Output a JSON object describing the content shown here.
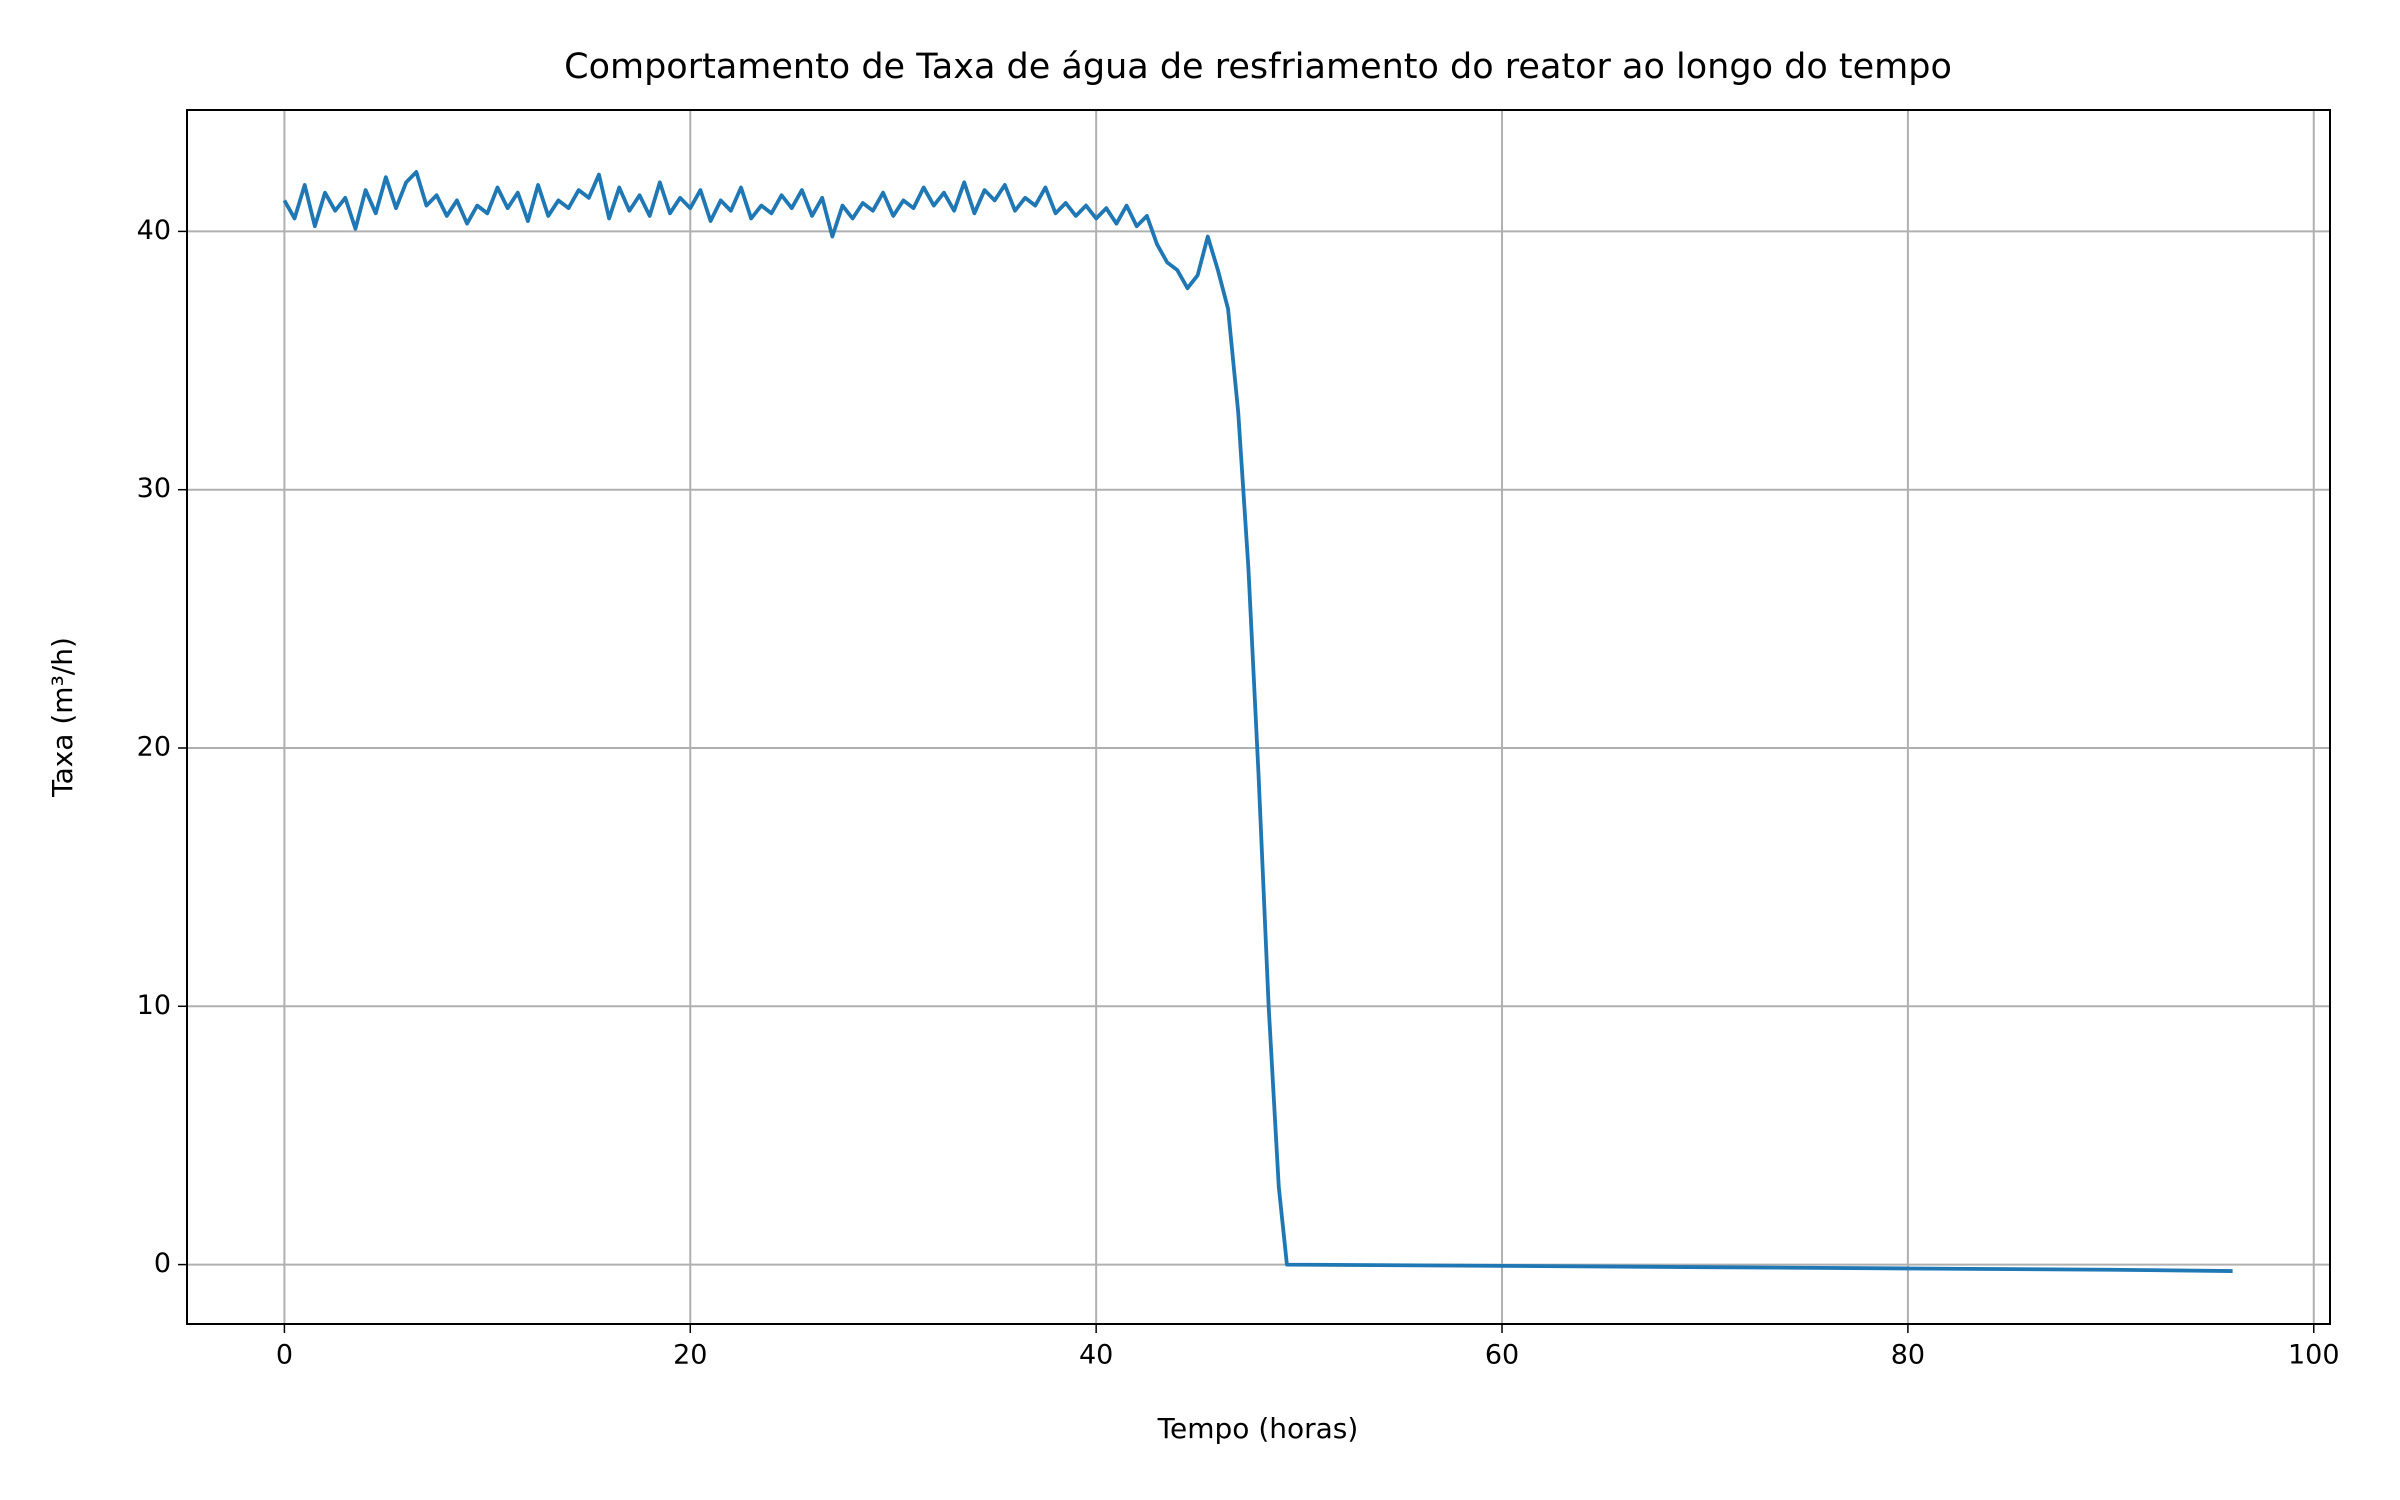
{
  "chart_data": {
    "type": "line",
    "title": "Comportamento de Taxa de água de resfriamento do reator ao longo do tempo",
    "xlabel": "Tempo (horas)",
    "ylabel": "Taxa (m³/h)",
    "xlim": [
      -4.8,
      100.8
    ],
    "ylim": [
      -2.3,
      44.7
    ],
    "xticks": [
      0,
      20,
      40,
      60,
      80,
      100
    ],
    "yticks": [
      0,
      10,
      20,
      30,
      40
    ],
    "grid": true,
    "x": [
      0,
      0.5,
      1,
      1.5,
      2,
      2.5,
      3,
      3.5,
      4,
      4.5,
      5,
      5.5,
      6,
      6.5,
      7,
      7.5,
      8,
      8.5,
      9,
      9.5,
      10,
      10.5,
      11,
      11.5,
      12,
      12.5,
      13,
      13.5,
      14,
      14.5,
      15,
      15.5,
      16,
      16.5,
      17,
      17.5,
      18,
      18.5,
      19,
      19.5,
      20,
      20.5,
      21,
      21.5,
      22,
      22.5,
      23,
      23.5,
      24,
      24.5,
      25,
      25.5,
      26,
      26.5,
      27,
      27.5,
      28,
      28.5,
      29,
      29.5,
      30,
      30.5,
      31,
      31.5,
      32,
      32.5,
      33,
      33.5,
      34,
      34.5,
      35,
      35.5,
      36,
      36.5,
      37,
      37.5,
      38,
      38.5,
      39,
      39.5,
      40,
      40.5,
      41,
      41.5,
      42,
      42.5,
      43,
      43.5,
      44,
      44.5,
      45,
      45.5,
      46,
      46.5,
      47,
      47.5,
      48,
      48.5,
      49,
      49.4,
      60,
      70,
      80,
      90,
      96
    ],
    "series": [
      {
        "name": "Taxa",
        "color": "#1f77b4",
        "values": [
          41.2,
          40.5,
          41.8,
          40.2,
          41.5,
          40.8,
          41.3,
          40.1,
          41.6,
          40.7,
          42.1,
          40.9,
          41.9,
          42.3,
          41.0,
          41.4,
          40.6,
          41.2,
          40.3,
          41.0,
          40.7,
          41.7,
          40.9,
          41.5,
          40.4,
          41.8,
          40.6,
          41.2,
          40.9,
          41.6,
          41.3,
          42.2,
          40.5,
          41.7,
          40.8,
          41.4,
          40.6,
          41.9,
          40.7,
          41.3,
          40.9,
          41.6,
          40.4,
          41.2,
          40.8,
          41.7,
          40.5,
          41.0,
          40.7,
          41.4,
          40.9,
          41.6,
          40.6,
          41.3,
          39.8,
          41.0,
          40.5,
          41.1,
          40.8,
          41.5,
          40.6,
          41.2,
          40.9,
          41.7,
          41.0,
          41.5,
          40.8,
          41.9,
          40.7,
          41.6,
          41.2,
          41.8,
          40.8,
          41.3,
          41.0,
          41.7,
          40.7,
          41.1,
          40.6,
          41.0,
          40.5,
          40.9,
          40.3,
          41.0,
          40.2,
          40.6,
          39.5,
          38.8,
          38.5,
          37.8,
          38.3,
          39.8,
          38.5,
          37,
          33,
          27,
          19,
          10,
          3,
          0,
          -0.05,
          -0.1,
          -0.15,
          -0.2,
          -0.25
        ]
      }
    ]
  }
}
